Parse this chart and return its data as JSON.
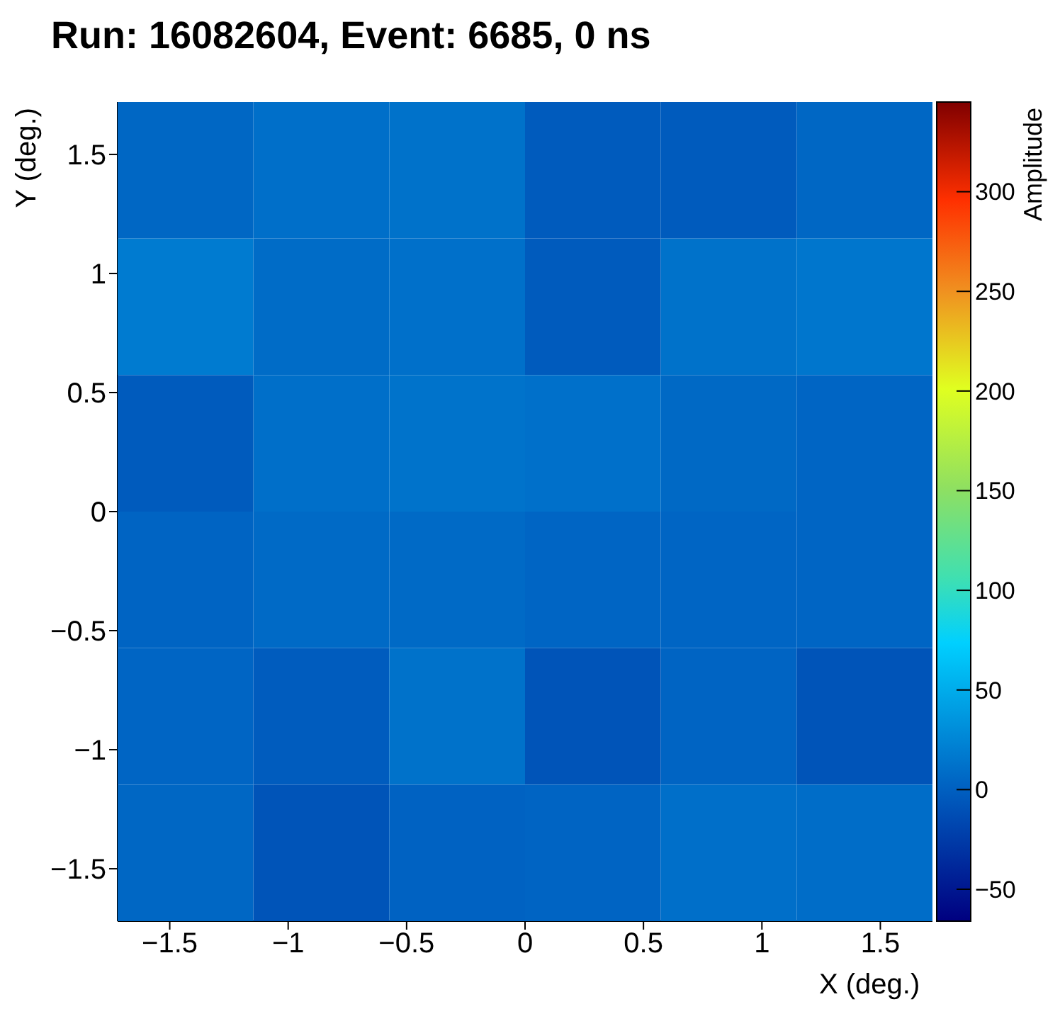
{
  "chart_data": {
    "type": "heatmap",
    "title": "Run: 16082604, Event: 6685, 0 ns",
    "xlabel": "X (deg.)",
    "ylabel": "Y (deg.)",
    "clabel": "Amplitude",
    "xlim": [
      -1.72,
      1.72
    ],
    "xticks": [
      {
        "value": -1.5,
        "label": "−1.5"
      },
      {
        "value": -1,
        "label": "−1"
      },
      {
        "value": -0.5,
        "label": "−0.5"
      },
      0,
      0.5,
      1,
      1.5
    ],
    "ylim": [
      -1.72,
      1.72
    ],
    "yticks": [
      {
        "value": -1.5,
        "label": "−1.5"
      },
      {
        "value": -1,
        "label": "−1"
      },
      {
        "value": -0.5,
        "label": "−0.5"
      },
      0,
      0.5,
      1,
      1.5
    ],
    "cells": [
      [
        5,
        10,
        12,
        -3,
        -3,
        5
      ],
      [
        18,
        8,
        11,
        -3,
        12,
        15
      ],
      [
        -3,
        10,
        13,
        11,
        6,
        4
      ],
      [
        3,
        7,
        7,
        4,
        4,
        4
      ],
      [
        4,
        -2,
        12,
        -8,
        3,
        -8
      ],
      [
        5,
        -8,
        2,
        3,
        10,
        9
      ]
    ],
    "clim": [
      -66,
      345
    ],
    "cticks": [
      {
        "value": -50,
        "label": "−50"
      },
      0,
      50,
      100,
      150,
      200,
      250,
      300
    ]
  }
}
